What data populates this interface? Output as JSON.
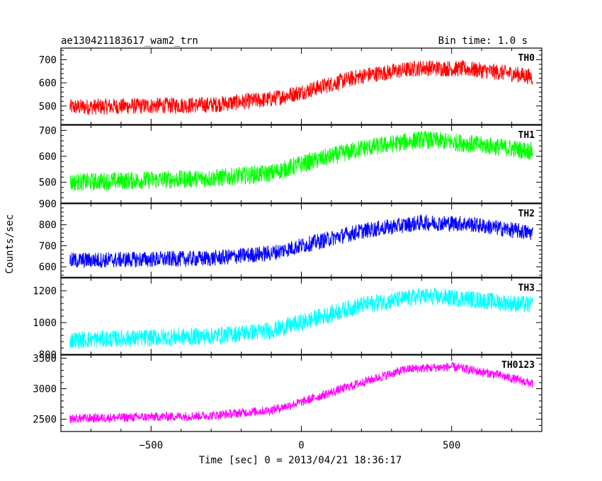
{
  "header": {
    "title": "ae130421183617_wam2_trn",
    "bin_time": "Bin time: 1.0 s"
  },
  "chart_data": {
    "type": "line",
    "ylabel": "Counts/sec",
    "xlabel": "Time [sec] 0 = 2013/04/21 18:36:17",
    "xlim": [
      -800,
      800
    ],
    "x_ticks": [
      -500,
      0,
      500
    ],
    "x_tick_labels": [
      "−500",
      "0",
      "500"
    ],
    "x_range_data": [
      -770,
      770
    ],
    "series": [
      {
        "name": "TH0",
        "color": "#ff0000",
        "ylim": [
          420,
          750
        ],
        "y_ticks": [
          500,
          600,
          700
        ],
        "y_tick_labels": [
          "500",
          "600",
          "700"
        ],
        "trend": [
          [
            -770,
            495
          ],
          [
            -300,
            505
          ],
          [
            -100,
            530
          ],
          [
            0,
            560
          ],
          [
            200,
            630
          ],
          [
            400,
            665
          ],
          [
            550,
            660
          ],
          [
            700,
            640
          ],
          [
            770,
            625
          ]
        ],
        "noise_amplitude": 35
      },
      {
        "name": "TH1",
        "color": "#00ff00",
        "ylim": [
          420,
          720
        ],
        "y_ticks": [
          500,
          600,
          700
        ],
        "y_tick_labels": [
          "500",
          "600",
          "700"
        ],
        "trend": [
          [
            -770,
            500
          ],
          [
            -300,
            515
          ],
          [
            -100,
            535
          ],
          [
            0,
            570
          ],
          [
            200,
            630
          ],
          [
            400,
            665
          ],
          [
            550,
            650
          ],
          [
            700,
            630
          ],
          [
            770,
            620
          ]
        ],
        "noise_amplitude": 35
      },
      {
        "name": "TH2",
        "color": "#0000ff",
        "ylim": [
          550,
          900
        ],
        "y_ticks": [
          600,
          700,
          800,
          900
        ],
        "y_tick_labels": [
          "600",
          "700",
          "800",
          "900"
        ],
        "trend": [
          [
            -770,
            630
          ],
          [
            -300,
            640
          ],
          [
            -100,
            665
          ],
          [
            0,
            700
          ],
          [
            200,
            770
          ],
          [
            400,
            810
          ],
          [
            550,
            805
          ],
          [
            700,
            775
          ],
          [
            770,
            760
          ]
        ],
        "noise_amplitude": 38
      },
      {
        "name": "TH3",
        "color": "#00ffff",
        "ylim": [
          800,
          1280
        ],
        "y_ticks": [
          800,
          1000,
          1200
        ],
        "y_tick_labels": [
          "800",
          "1000",
          "1200"
        ],
        "trend": [
          [
            -770,
            890
          ],
          [
            -300,
            915
          ],
          [
            -100,
            950
          ],
          [
            0,
            1000
          ],
          [
            200,
            1110
          ],
          [
            400,
            1165
          ],
          [
            550,
            1150
          ],
          [
            700,
            1120
          ],
          [
            770,
            1110
          ]
        ],
        "noise_amplitude": 55
      },
      {
        "name": "TH0123",
        "color": "#ff00ff",
        "ylim": [
          2300,
          3550
        ],
        "y_ticks": [
          2500,
          3000,
          3500
        ],
        "y_tick_labels": [
          "2500",
          "3000",
          "3500"
        ],
        "trend": [
          [
            -770,
            2510
          ],
          [
            -300,
            2560
          ],
          [
            -100,
            2650
          ],
          [
            0,
            2780
          ],
          [
            200,
            3100
          ],
          [
            350,
            3320
          ],
          [
            500,
            3360
          ],
          [
            650,
            3230
          ],
          [
            770,
            3080
          ]
        ],
        "noise_amplitude": 75
      }
    ]
  }
}
